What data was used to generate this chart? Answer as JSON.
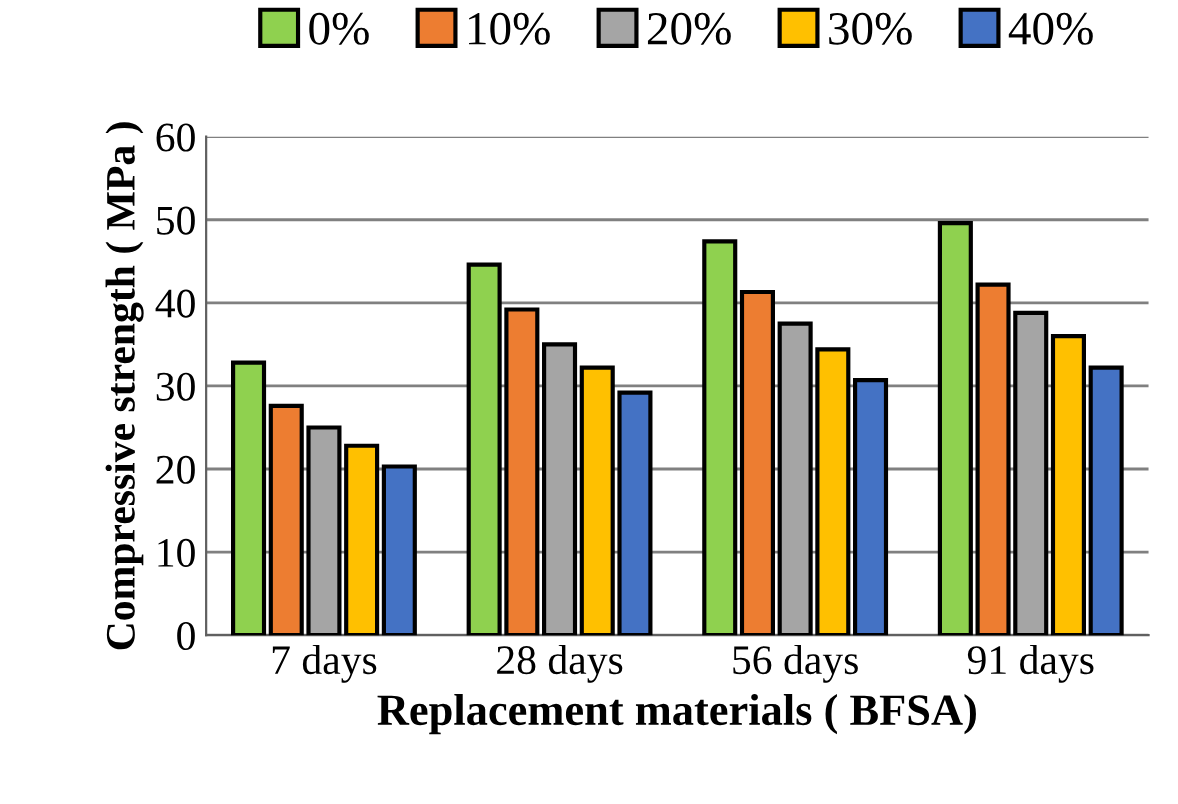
{
  "chart_data": {
    "type": "bar",
    "xlabel": "Replacement materials ( BFSA)",
    "ylabel": "Compressive strength ( MPa )",
    "categories": [
      "7 days",
      "28 days",
      "56 days",
      "91 days"
    ],
    "series": [
      {
        "name": "0%",
        "color": "#8fd14f",
        "values": [
          32.8,
          44.6,
          47.4,
          49.6
        ]
      },
      {
        "name": "10%",
        "color": "#ed7d31",
        "values": [
          27.6,
          39.2,
          41.3,
          42.2
        ]
      },
      {
        "name": "20%",
        "color": "#a5a5a5",
        "values": [
          25.0,
          35.0,
          37.5,
          38.8
        ]
      },
      {
        "name": "30%",
        "color": "#ffc000",
        "values": [
          22.8,
          32.2,
          34.4,
          36.0
        ]
      },
      {
        "name": "40%",
        "color": "#4472c4",
        "values": [
          20.3,
          29.2,
          30.7,
          32.2
        ]
      }
    ],
    "ylim": [
      0,
      60
    ],
    "yticks": [
      0,
      10,
      20,
      30,
      40,
      50,
      60
    ],
    "grid": "y",
    "legend": "top"
  }
}
